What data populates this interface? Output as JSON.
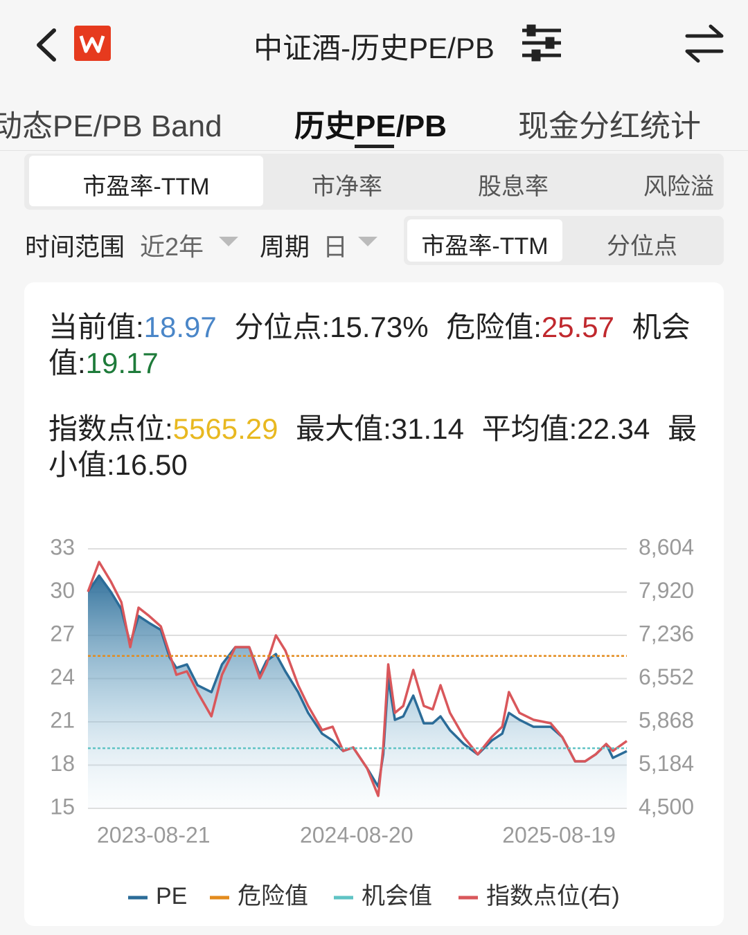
{
  "header": {
    "title": "中证酒-历史PE/PB"
  },
  "tabs": [
    "动态PE/PB Band",
    "历史PE/PB",
    "现金分红统计"
  ],
  "subtabs": [
    "市盈率-TTM",
    "市净率",
    "股息率",
    "风险溢"
  ],
  "filters": {
    "range_label": "时间范围",
    "range_value": "近2年",
    "period_label": "周期",
    "period_value": "日"
  },
  "toggle": [
    "市盈率-TTM",
    "分位点"
  ],
  "stats": [
    [
      {
        "label": "当前值:",
        "value": "18.97",
        "color": "#4a86c8"
      },
      {
        "label": "分位点:",
        "value": "15.73%"
      },
      {
        "label": "危险值:",
        "value": "25.57",
        "color": "#c0282d"
      },
      {
        "label": "机会值:",
        "value": "19.17",
        "color": "#1e7b3a"
      }
    ],
    [
      {
        "label": "指数点位:",
        "value": "5565.29",
        "color": "#e8b820"
      },
      {
        "label": "最大值:",
        "value": "31.14"
      },
      {
        "label": "平均值:",
        "value": "22.34"
      },
      {
        "label": "最小值:",
        "value": "16.50"
      }
    ]
  ],
  "chart_data": {
    "type": "line",
    "x": [
      "2023-04-25",
      "2023-05-15",
      "2023-06-05",
      "2023-06-24",
      "2023-07-10",
      "2023-07-25",
      "2023-08-13",
      "2023-09-03",
      "2023-09-19",
      "2023-10-01",
      "2023-10-20",
      "2023-11-08",
      "2023-12-03",
      "2023-12-22",
      "2024-01-15",
      "2024-02-09",
      "2024-02-28",
      "2024-03-11",
      "2024-03-28",
      "2024-04-14",
      "2024-05-07",
      "2024-05-25",
      "2024-06-19",
      "2024-07-08",
      "2024-07-27",
      "2024-08-14",
      "2024-09-08",
      "2024-09-28",
      "2024-10-07",
      "2024-10-16",
      "2024-10-28",
      "2024-11-12",
      "2024-11-30",
      "2024-12-19",
      "2025-01-04",
      "2025-01-18",
      "2025-02-04",
      "2025-03-01",
      "2025-03-26",
      "2025-04-20",
      "2025-05-09",
      "2025-05-21",
      "2025-06-09",
      "2025-07-04",
      "2025-08-04",
      "2025-08-25",
      "2025-09-17",
      "2025-10-05",
      "2025-10-24",
      "2025-11-12",
      "2025-11-24",
      "2025-12-19"
    ],
    "xlim": [
      "2023-04-25",
      "2025-12-19"
    ],
    "xticks": [
      "2023-08-21",
      "2024-08-20",
      "2025-08-19"
    ],
    "ylim": [
      15,
      33
    ],
    "yticks": [
      15,
      18,
      21,
      24,
      27,
      30,
      33
    ],
    "y2lim": [
      4500,
      8604
    ],
    "y2ticks": [
      {
        "value": 4500,
        "label": "4,500"
      },
      {
        "value": 5184,
        "label": "5,184"
      },
      {
        "value": 5868,
        "label": "5,868"
      },
      {
        "value": 6552,
        "label": "6,552"
      },
      {
        "value": 7236,
        "label": "7,236"
      },
      {
        "value": 7920,
        "label": "7,920"
      },
      {
        "value": 8604,
        "label": "8,604"
      }
    ],
    "grid": true,
    "series": [
      {
        "name": "PE",
        "color": "#2b6c98",
        "area": true,
        "values": [
          30.02,
          31.14,
          30.02,
          28.82,
          26.42,
          28.34,
          27.86,
          27.38,
          25.46,
          24.74,
          24.98,
          23.54,
          23.06,
          24.98,
          26.18,
          26.18,
          24.26,
          25.22,
          25.7,
          24.5,
          23.06,
          21.62,
          20.18,
          19.7,
          18.98,
          19.22,
          17.78,
          16.5,
          18.74,
          24.02,
          21.14,
          21.38,
          22.82,
          20.9,
          20.9,
          21.38,
          20.42,
          19.46,
          18.74,
          19.7,
          20.18,
          21.62,
          21.14,
          20.66,
          20.66,
          19.94,
          18.26,
          18.26,
          18.74,
          19.46,
          18.5,
          18.97
        ]
      },
      {
        "name": "危险值",
        "color": "#e38b1d",
        "dash": true,
        "value": 25.57
      },
      {
        "name": "机会值",
        "color": "#5fc3c4",
        "dash": true,
        "value": 19.17
      },
      {
        "name": "指数点位(右)",
        "color": "#d9575b",
        "axis": "y2",
        "values": [
          7925,
          8396,
          8090,
          7761,
          7050,
          7674,
          7542,
          7378,
          6940,
          6612,
          6667,
          6339,
          5956,
          6612,
          7050,
          7050,
          6557,
          6776,
          7236,
          6995,
          6448,
          6120,
          5737,
          5791,
          5408,
          5463,
          5135,
          4697,
          5463,
          6776,
          6010,
          6120,
          6689,
          6120,
          6065,
          6448,
          6010,
          5627,
          5354,
          5627,
          5791,
          6339,
          6010,
          5901,
          5846,
          5627,
          5244,
          5244,
          5354,
          5518,
          5408,
          5565.29
        ]
      }
    ]
  }
}
